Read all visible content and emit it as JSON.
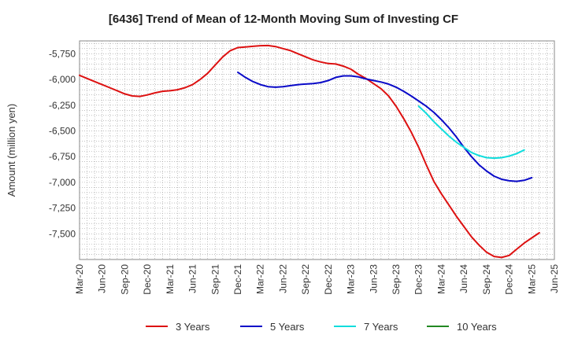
{
  "chart_data": {
    "type": "line",
    "title": "[6436]  Trend of Mean of 12-Month Moving Sum of Investing CF",
    "xlabel": "",
    "ylabel": "Amount (million yen)",
    "ylim": [
      -7750,
      -5625
    ],
    "y_ticks": [
      -5750,
      -6000,
      -6250,
      -6500,
      -6750,
      -7000,
      -7250,
      -7500
    ],
    "y_tick_labels": [
      "-5,750",
      "-6,000",
      "-6,250",
      "-6,500",
      "-6,750",
      "-7,000",
      "-7,250",
      "-7,500"
    ],
    "x_tick_labels": [
      "Mar-20",
      "Jun-20",
      "Sep-20",
      "Dec-20",
      "Mar-21",
      "Jun-21",
      "Sep-21",
      "Dec-21",
      "Mar-22",
      "Jun-22",
      "Sep-22",
      "Dec-22",
      "Mar-23",
      "Jun-23",
      "Sep-23",
      "Dec-23",
      "Mar-24",
      "Jun-24",
      "Sep-24",
      "Dec-24",
      "Mar-25",
      "Jun-25"
    ],
    "x_range_months": [
      0,
      63
    ],
    "grid": true,
    "legend_position": "bottom",
    "series": [
      {
        "name": "3 Years",
        "color": "#dd1111",
        "start_month": 0,
        "values": [
          -5960,
          -5990,
          -6020,
          -6050,
          -6080,
          -6110,
          -6140,
          -6160,
          -6165,
          -6150,
          -6130,
          -6115,
          -6110,
          -6100,
          -6080,
          -6050,
          -6000,
          -5940,
          -5860,
          -5780,
          -5720,
          -5690,
          -5685,
          -5678,
          -5672,
          -5670,
          -5680,
          -5700,
          -5720,
          -5750,
          -5780,
          -5810,
          -5830,
          -5845,
          -5850,
          -5870,
          -5900,
          -5950,
          -5990,
          -6040,
          -6090,
          -6160,
          -6260,
          -6380,
          -6510,
          -6660,
          -6830,
          -6990,
          -7110,
          -7220,
          -7330,
          -7430,
          -7530,
          -7610,
          -7680,
          -7720,
          -7730,
          -7710,
          -7650,
          -7590,
          -7540,
          -7490
        ]
      },
      {
        "name": "5 Years",
        "color": "#0a0ac8",
        "start_month": 21,
        "values": [
          -5930,
          -5980,
          -6020,
          -6050,
          -6070,
          -6075,
          -6070,
          -6060,
          -6050,
          -6045,
          -6040,
          -6030,
          -6010,
          -5980,
          -5965,
          -5965,
          -5975,
          -5995,
          -6010,
          -6025,
          -6045,
          -6075,
          -6115,
          -6160,
          -6210,
          -6260,
          -6320,
          -6390,
          -6470,
          -6560,
          -6660,
          -6750,
          -6830,
          -6890,
          -6940,
          -6970,
          -6985,
          -6990,
          -6980,
          -6955
        ]
      },
      {
        "name": "7 Years",
        "color": "#11dddd",
        "start_month": 45,
        "values": [
          -6260,
          -6330,
          -6410,
          -6480,
          -6550,
          -6610,
          -6660,
          -6710,
          -6740,
          -6760,
          -6765,
          -6760,
          -6745,
          -6720,
          -6685
        ]
      },
      {
        "name": "10 Years",
        "color": "#228822",
        "start_month": 0,
        "values": []
      }
    ]
  }
}
